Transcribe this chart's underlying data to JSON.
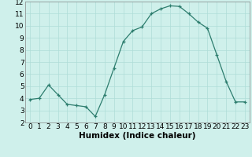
{
  "x": [
    0,
    1,
    2,
    3,
    4,
    5,
    6,
    7,
    8,
    9,
    10,
    11,
    12,
    13,
    14,
    15,
    16,
    17,
    18,
    19,
    20,
    21,
    22,
    23
  ],
  "y": [
    3.9,
    4.0,
    5.1,
    4.3,
    3.5,
    3.4,
    3.3,
    2.5,
    4.3,
    6.5,
    8.7,
    9.6,
    9.9,
    11.0,
    11.4,
    11.65,
    11.6,
    11.0,
    10.3,
    9.8,
    7.6,
    5.4,
    3.7,
    3.7
  ],
  "line_color": "#2d7d6e",
  "marker": "+",
  "marker_size": 3,
  "marker_color": "#2d7d6e",
  "bg_color": "#cff0eb",
  "grid_color": "#aeddd7",
  "xlabel": "Humidex (Indice chaleur)",
  "xlim": [
    -0.5,
    23.5
  ],
  "ylim": [
    2,
    12
  ],
  "yticks": [
    2,
    3,
    4,
    5,
    6,
    7,
    8,
    9,
    10,
    11,
    12
  ],
  "xticks": [
    0,
    1,
    2,
    3,
    4,
    5,
    6,
    7,
    8,
    9,
    10,
    11,
    12,
    13,
    14,
    15,
    16,
    17,
    18,
    19,
    20,
    21,
    22,
    23
  ],
  "tick_label_fontsize": 6.5,
  "xlabel_fontsize": 7.5
}
